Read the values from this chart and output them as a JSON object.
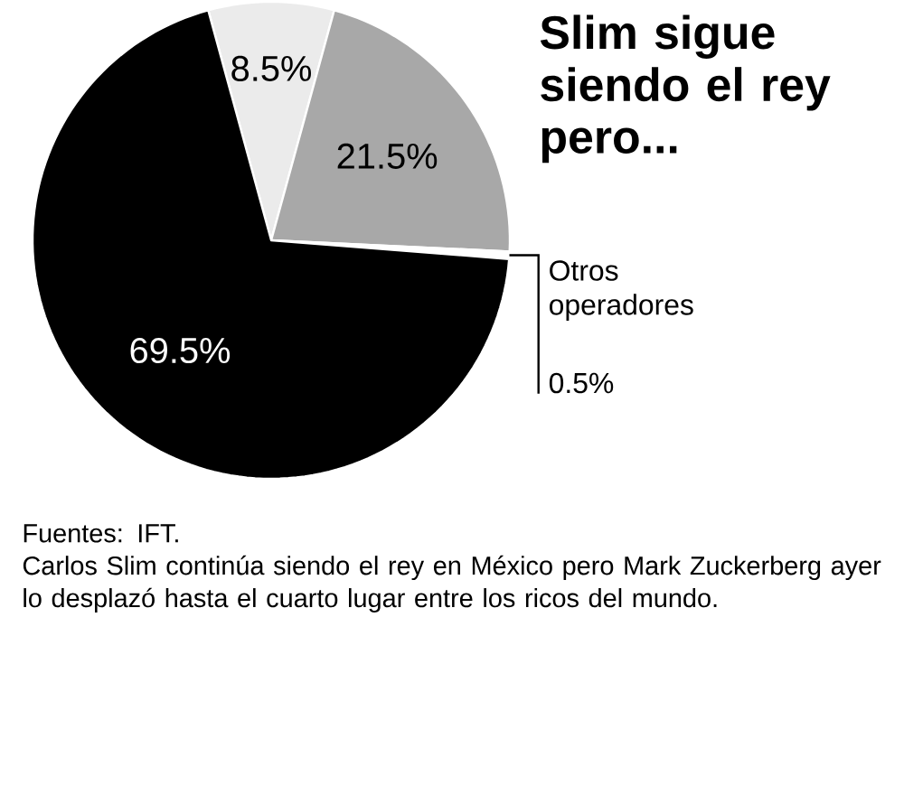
{
  "chart_data": {
    "type": "pie",
    "title": "Slim sigue siendo el rey pero...",
    "categories": [
      null,
      null,
      "Otros operadores",
      null
    ],
    "values": [
      8.5,
      21.5,
      0.5,
      69.5
    ],
    "colors": [
      "#ebebeb",
      "#a8a8a8",
      "#ffffff",
      "#000000"
    ],
    "value_labels": [
      "8.5%",
      "21.5%",
      "0.5%",
      "69.5%"
    ],
    "annotations": [
      "Fuentes: IFT.",
      "Carlos Slim continúa siendo el rey en México pero Mark Zuckerberg ayer lo desplazó hasta el cuarto lugar entre los ricos del mundo."
    ]
  }
}
